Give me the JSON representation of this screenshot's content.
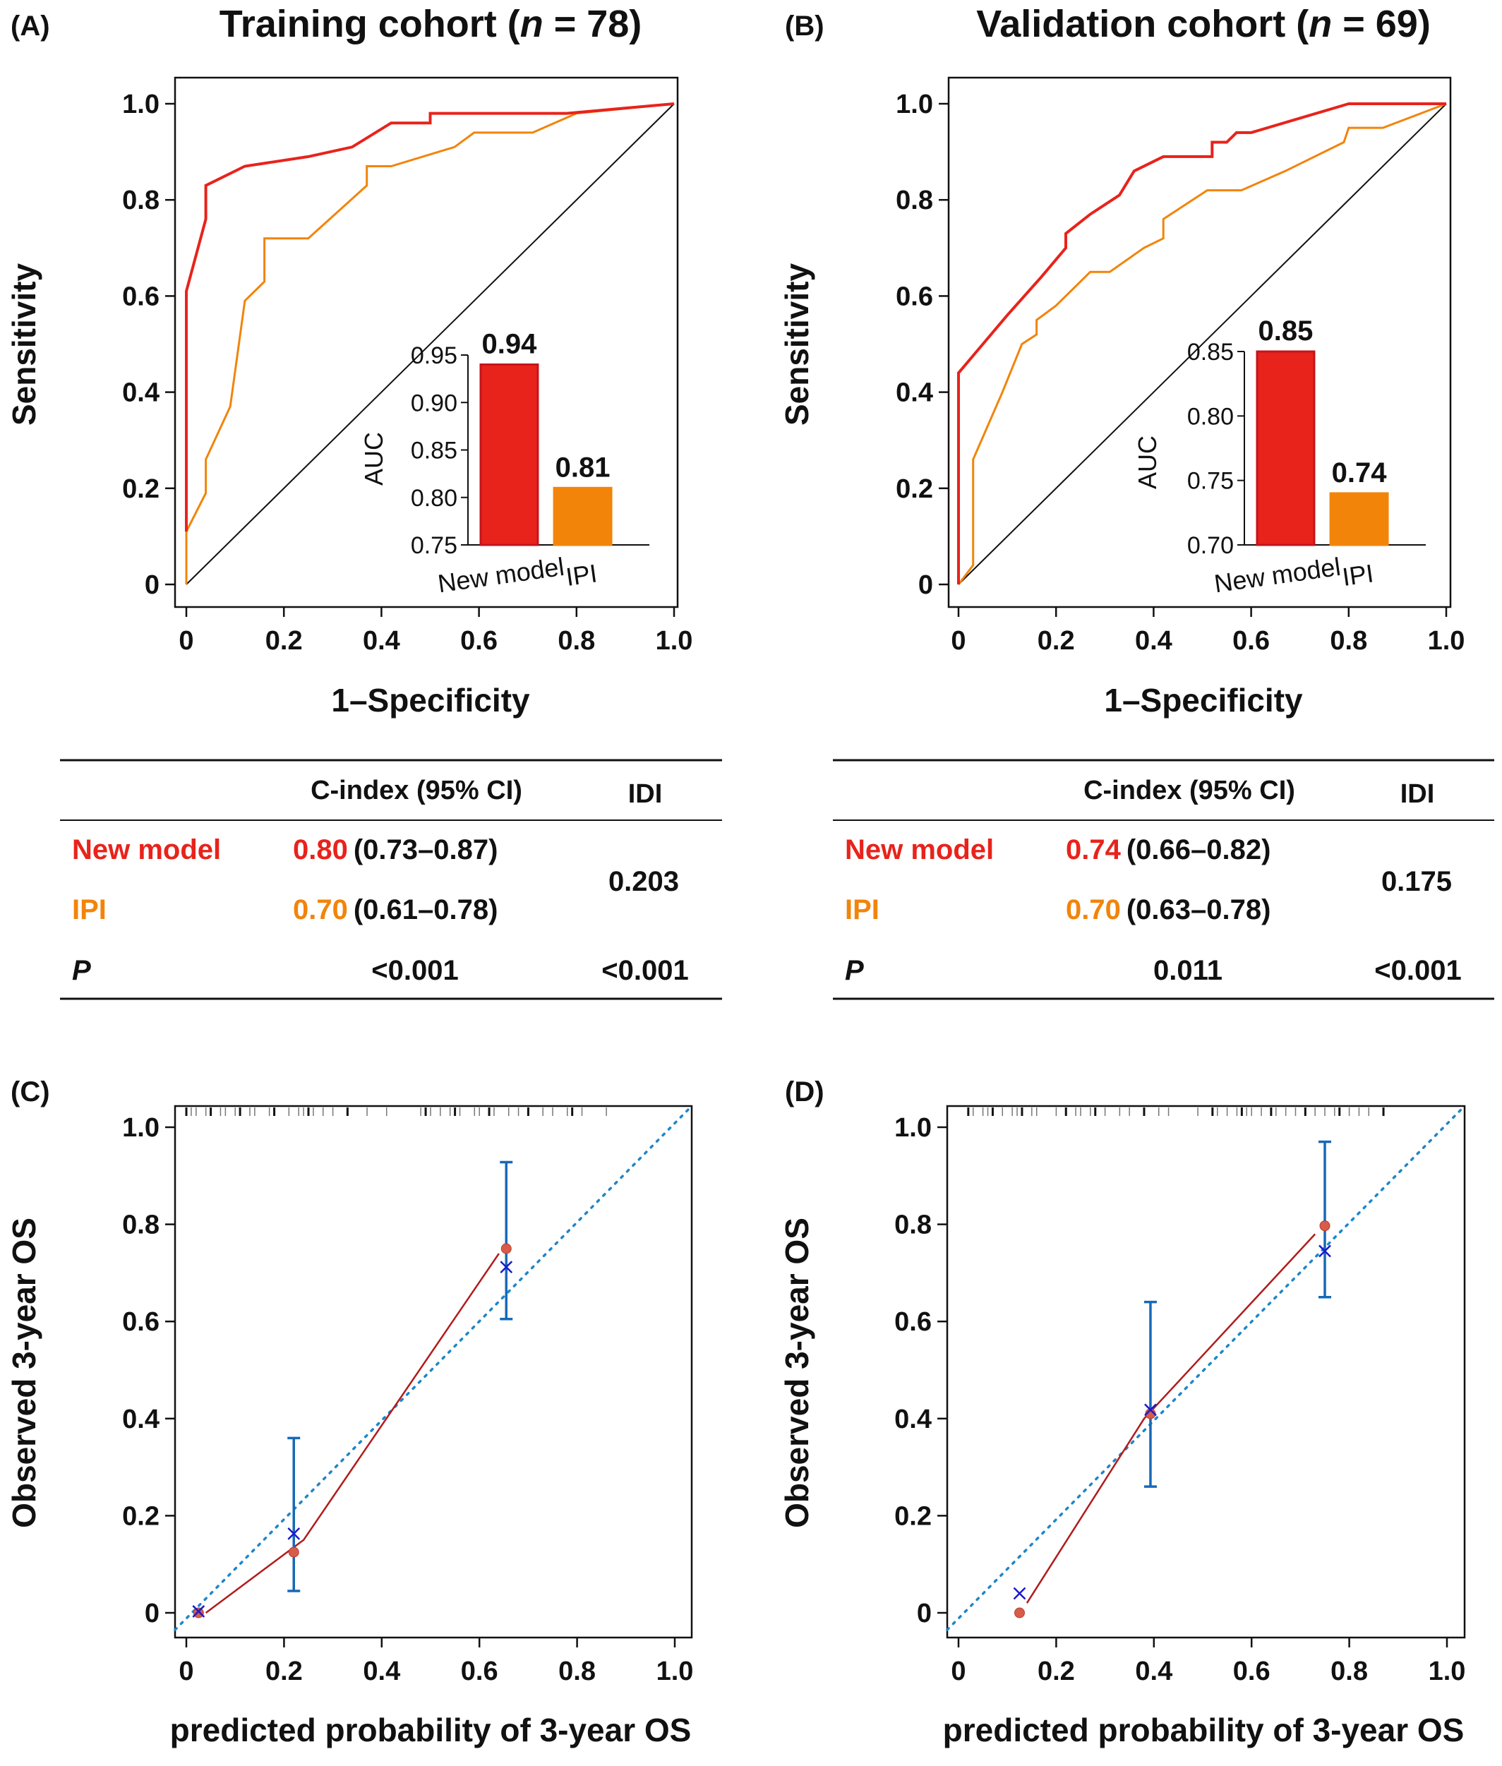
{
  "colors": {
    "new_model": "#e8231b",
    "ipi": "#f2840a",
    "ideal": "#1f86c8",
    "calib_line": "#b01c1c",
    "calib_point": "#d95b4a",
    "error_bar": "#1669b8",
    "cross": "#1a1acc",
    "text": "#111111"
  },
  "panels": {
    "A": {
      "letter": "(A)",
      "title_pre": "Training cohort (",
      "title_n": "n",
      "title_post": " = 78)",
      "table": {
        "col_cindex": "C-index (95% CI)",
        "col_idi": "IDI",
        "row_new_label": "New model",
        "row_new_c": "0.80",
        "row_new_ci": "(0.73–0.87)",
        "row_ipi_label": "IPI",
        "row_ipi_c": "0.70",
        "row_ipi_ci": "(0.61–0.78)",
        "idi_value": "0.203",
        "p_label": "P",
        "p_cindex": "<0.001",
        "p_idi": "<0.001"
      }
    },
    "B": {
      "letter": "(B)",
      "title_pre": "Validation cohort (",
      "title_n": "n",
      "title_post": " = 69)",
      "table": {
        "col_cindex": "C-index (95% CI)",
        "col_idi": "IDI",
        "row_new_label": "New model",
        "row_new_c": "0.74",
        "row_new_ci": "(0.66–0.82)",
        "row_ipi_label": "IPI",
        "row_ipi_c": "0.70",
        "row_ipi_ci": "(0.63–0.78)",
        "idi_value": "0.175",
        "p_label": "P",
        "p_cindex": "0.011",
        "p_idi": "<0.001"
      }
    },
    "C": {
      "letter": "(C)"
    },
    "D": {
      "letter": "(D)"
    }
  },
  "chart_data": [
    {
      "id": "A",
      "type": "line",
      "xlabel": "1–Specificity",
      "ylabel": "Sensitivity",
      "xlim": [
        0,
        1
      ],
      "ylim": [
        0,
        1
      ],
      "x_ticks": [
        "0",
        "0.2",
        "0.4",
        "0.6",
        "0.8",
        "1.0"
      ],
      "y_ticks": [
        "0",
        "0.2",
        "0.4",
        "0.6",
        "0.8",
        "1.0"
      ],
      "diagonal": true,
      "series": [
        {
          "name": "New model",
          "color_key": "new_model",
          "points": [
            [
              0,
              0.11
            ],
            [
              0,
              0.61
            ],
            [
              0.04,
              0.76
            ],
            [
              0.04,
              0.83
            ],
            [
              0.12,
              0.87
            ],
            [
              0.25,
              0.89
            ],
            [
              0.34,
              0.91
            ],
            [
              0.42,
              0.96
            ],
            [
              0.5,
              0.96
            ],
            [
              0.5,
              0.98
            ],
            [
              0.78,
              0.98
            ],
            [
              1,
              1
            ]
          ]
        },
        {
          "name": "IPI",
          "color_key": "ipi",
          "points": [
            [
              0,
              0
            ],
            [
              0,
              0.11
            ],
            [
              0.04,
              0.19
            ],
            [
              0.04,
              0.26
            ],
            [
              0.09,
              0.37
            ],
            [
              0.12,
              0.59
            ],
            [
              0.16,
              0.63
            ],
            [
              0.16,
              0.72
            ],
            [
              0.25,
              0.72
            ],
            [
              0.37,
              0.83
            ],
            [
              0.37,
              0.87
            ],
            [
              0.42,
              0.87
            ],
            [
              0.55,
              0.91
            ],
            [
              0.59,
              0.94
            ],
            [
              0.71,
              0.94
            ],
            [
              0.8,
              0.98
            ],
            [
              1,
              1
            ]
          ]
        }
      ],
      "inset": {
        "type": "bar",
        "ylabel": "AUC",
        "ylim": [
          0.75,
          0.95
        ],
        "y_ticks": [
          "0.75",
          "0.80",
          "0.85",
          "0.90",
          "0.95"
        ],
        "categories": [
          "New model",
          "IPI"
        ],
        "values": [
          0.94,
          0.81
        ],
        "value_labels": [
          "0.94",
          "0.81"
        ]
      }
    },
    {
      "id": "B",
      "type": "line",
      "xlabel": "1–Specificity",
      "ylabel": "Sensitivity",
      "xlim": [
        0,
        1
      ],
      "ylim": [
        0,
        1
      ],
      "x_ticks": [
        "0",
        "0.2",
        "0.4",
        "0.6",
        "0.8",
        "1.0"
      ],
      "y_ticks": [
        "0",
        "0.2",
        "0.4",
        "0.6",
        "0.8",
        "1.0"
      ],
      "diagonal": true,
      "series": [
        {
          "name": "New model",
          "color_key": "new_model",
          "points": [
            [
              0,
              0
            ],
            [
              0,
              0.44
            ],
            [
              0.05,
              0.5
            ],
            [
              0.1,
              0.56
            ],
            [
              0.17,
              0.64
            ],
            [
              0.22,
              0.7
            ],
            [
              0.22,
              0.73
            ],
            [
              0.27,
              0.77
            ],
            [
              0.33,
              0.81
            ],
            [
              0.36,
              0.86
            ],
            [
              0.42,
              0.89
            ],
            [
              0.52,
              0.89
            ],
            [
              0.52,
              0.92
            ],
            [
              0.55,
              0.92
            ],
            [
              0.57,
              0.94
            ],
            [
              0.6,
              0.94
            ],
            [
              0.7,
              0.97
            ],
            [
              0.8,
              1
            ],
            [
              1,
              1
            ]
          ]
        },
        {
          "name": "IPI",
          "color_key": "ipi",
          "points": [
            [
              0,
              0
            ],
            [
              0.03,
              0.04
            ],
            [
              0.03,
              0.26
            ],
            [
              0.09,
              0.4
            ],
            [
              0.13,
              0.5
            ],
            [
              0.16,
              0.52
            ],
            [
              0.16,
              0.55
            ],
            [
              0.2,
              0.58
            ],
            [
              0.23,
              0.61
            ],
            [
              0.27,
              0.65
            ],
            [
              0.31,
              0.65
            ],
            [
              0.38,
              0.7
            ],
            [
              0.42,
              0.72
            ],
            [
              0.42,
              0.76
            ],
            [
              0.45,
              0.78
            ],
            [
              0.51,
              0.82
            ],
            [
              0.58,
              0.82
            ],
            [
              0.67,
              0.86
            ],
            [
              0.79,
              0.92
            ],
            [
              0.8,
              0.95
            ],
            [
              0.87,
              0.95
            ],
            [
              1,
              1
            ]
          ]
        }
      ],
      "inset": {
        "type": "bar",
        "ylabel": "AUC",
        "ylim": [
          0.7,
          0.85
        ],
        "y_ticks": [
          "0.70",
          "0.75",
          "0.80",
          "0.85"
        ],
        "categories": [
          "New model",
          "IPI"
        ],
        "values": [
          0.85,
          0.74
        ],
        "value_labels": [
          "0.85",
          "0.74"
        ]
      }
    },
    {
      "id": "C",
      "type": "scatter",
      "xlabel": "predicted probability of 3-year OS",
      "ylabel": "Observed 3-year OS",
      "xlim": [
        0,
        1
      ],
      "ylim": [
        0,
        1
      ],
      "x_ticks": [
        "0",
        "0.2",
        "0.4",
        "0.6",
        "0.8",
        "1.0"
      ],
      "y_ticks": [
        "0",
        "0.2",
        "0.4",
        "0.6",
        "0.8",
        "1.0"
      ],
      "ideal_line": true,
      "observed": [
        [
          0.025,
          0
        ],
        [
          0.22,
          0.125
        ],
        [
          0.655,
          0.75
        ]
      ],
      "calibrated": [
        [
          0.025,
          0.003
        ],
        [
          0.22,
          0.163
        ],
        [
          0.655,
          0.712
        ]
      ],
      "error_bars": [
        [
          0.22,
          0.045,
          0.36
        ],
        [
          0.655,
          0.605,
          0.928
        ]
      ],
      "fit_line": [
        [
          0.04,
          0
        ],
        [
          0.2,
          0.12
        ],
        [
          0.24,
          0.15
        ],
        [
          0.64,
          0.74
        ]
      ],
      "rug": [
        0.0,
        0.01,
        0.02,
        0.04,
        0.05,
        0.07,
        0.08,
        0.1,
        0.11,
        0.13,
        0.14,
        0.17,
        0.18,
        0.21,
        0.23,
        0.24,
        0.25,
        0.26,
        0.28,
        0.3,
        0.33,
        0.37,
        0.41,
        0.48,
        0.49,
        0.5,
        0.52,
        0.54,
        0.55,
        0.56,
        0.59,
        0.6,
        0.62,
        0.63,
        0.66,
        0.68,
        0.7,
        0.73,
        0.75,
        0.78,
        0.79,
        0.81,
        0.86
      ]
    },
    {
      "id": "D",
      "type": "scatter",
      "xlabel": "predicted probability of 3-year OS",
      "ylabel": "Observed 3-year OS",
      "xlim": [
        0,
        1
      ],
      "ylim": [
        0,
        1
      ],
      "x_ticks": [
        "0",
        "0.2",
        "0.4",
        "0.6",
        "0.8",
        "1.0"
      ],
      "y_ticks": [
        "0",
        "0.2",
        "0.4",
        "0.6",
        "0.8",
        "1.0"
      ],
      "ideal_line": true,
      "observed": [
        [
          0.125,
          0
        ],
        [
          0.393,
          0.41
        ],
        [
          0.75,
          0.797
        ]
      ],
      "calibrated": [
        [
          0.125,
          0.04
        ],
        [
          0.393,
          0.418
        ],
        [
          0.75,
          0.745
        ]
      ],
      "error_bars": [
        [
          0.393,
          0.26,
          0.64
        ],
        [
          0.75,
          0.65,
          0.97
        ]
      ],
      "fit_line": [
        [
          0.14,
          0.02
        ],
        [
          0.38,
          0.4
        ],
        [
          0.73,
          0.78
        ]
      ],
      "rug": [
        0.02,
        0.03,
        0.05,
        0.06,
        0.07,
        0.09,
        0.11,
        0.12,
        0.13,
        0.15,
        0.16,
        0.2,
        0.22,
        0.24,
        0.25,
        0.27,
        0.28,
        0.3,
        0.33,
        0.35,
        0.38,
        0.41,
        0.43,
        0.49,
        0.52,
        0.53,
        0.55,
        0.57,
        0.58,
        0.59,
        0.6,
        0.62,
        0.64,
        0.65,
        0.67,
        0.69,
        0.71,
        0.73,
        0.75,
        0.77,
        0.78,
        0.8,
        0.82,
        0.84,
        0.87
      ]
    }
  ]
}
